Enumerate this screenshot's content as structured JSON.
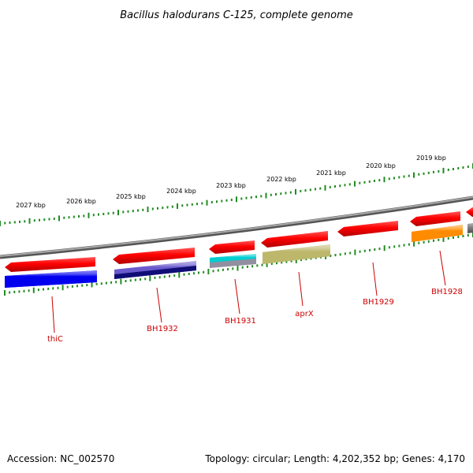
{
  "title": "Bacillus halodurans C-125, complete genome",
  "footer": {
    "accession": "Accession: NC_002570",
    "info": "Topology: circular; Length: 4,202,352 bp; Genes: 4,170"
  },
  "ruler": {
    "labels": [
      "2027 kbp",
      "2026 kbp",
      "2025 kbp",
      "2024 kbp",
      "2023 kbp",
      "2022 kbp",
      "2021 kbp",
      "2020 kbp",
      "2019 kbp"
    ]
  },
  "genes": [
    {
      "name": "thiC",
      "strand": "-",
      "color": "#0000ee"
    },
    {
      "name": "BH1932",
      "strand": "-",
      "color": "#6a5acd"
    },
    {
      "name": "BH1931",
      "strand": "-",
      "color": "#00ced1"
    },
    {
      "name": "aprX",
      "strand": "-",
      "color": "#bdb76b"
    },
    {
      "name": "BH1929",
      "strand": "-",
      "color": "#ff0000"
    },
    {
      "name": "BH1928",
      "strand": "-",
      "color": "#ff8c00"
    }
  ],
  "colors": {
    "backbone": "#7f7f7f",
    "ruler": "#228b22",
    "strand_arrow": "#ff0000",
    "label": "#cc0000"
  }
}
